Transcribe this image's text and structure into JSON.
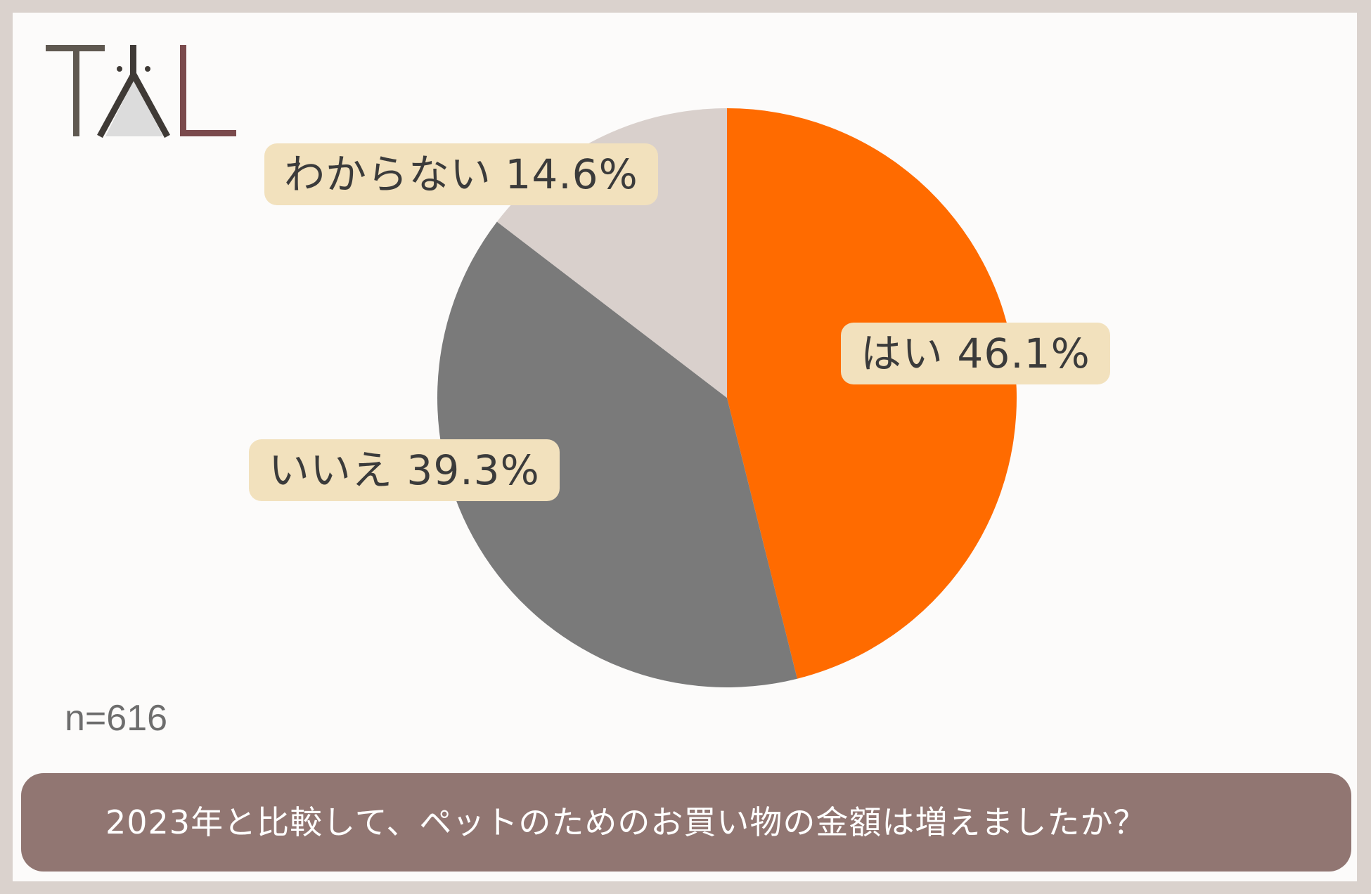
{
  "logo": {
    "text": "TAL",
    "colors": {
      "t": "#5f5850",
      "a": "#3f3a36",
      "l": "#7a4a4c",
      "fill": "#dcdcdc"
    }
  },
  "chart_data": {
    "type": "pie",
    "slices": [
      {
        "label": "はい",
        "value": 46.1,
        "display": "はい 46.1%",
        "color": "#ff6b00"
      },
      {
        "label": "いいえ",
        "value": 39.3,
        "display": "いいえ 39.3%",
        "color": "#7a7a7a"
      },
      {
        "label": "わからない",
        "value": 14.6,
        "display": "わからない 14.6%",
        "color": "#d9d0cc"
      }
    ],
    "start": "12 o'clock",
    "direction": "clockwise",
    "sample_size": "n=616",
    "question": "2023年と比較して、ペットのためのお買い物の金額は増えましたか？"
  },
  "colors": {
    "background": "#fcfbfa",
    "border": "#dad2cd",
    "label_bg": "#f2e1bd",
    "question_bg": "#917672"
  }
}
